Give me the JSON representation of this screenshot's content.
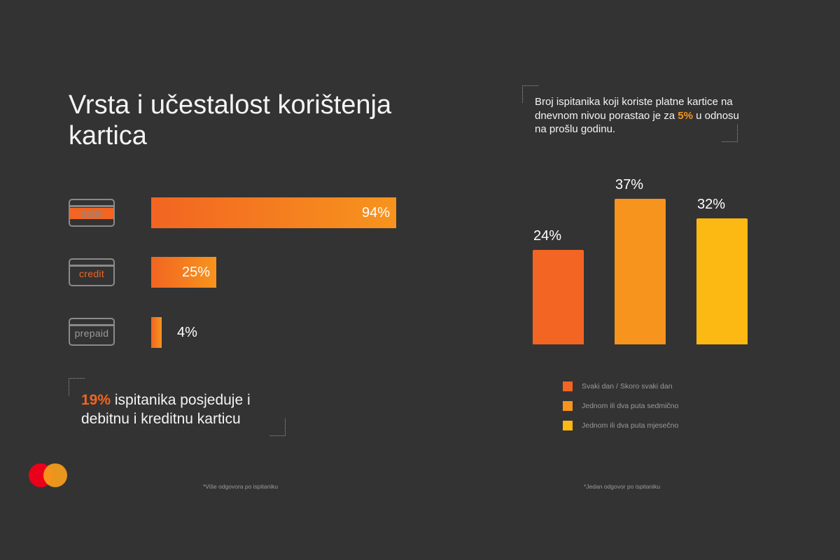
{
  "title": "Vrsta i učestalost korištenja kartica",
  "colors": {
    "background": "#333333",
    "orange": "#f26522",
    "amber": "#f7941d",
    "yellow": "#fdb913",
    "gray": "#8a8a8a",
    "logo_red": "#eb001b",
    "logo_orange": "#f79e1b"
  },
  "chart_data": [
    {
      "type": "bar",
      "orientation": "horizontal",
      "categories": [
        "debit",
        "credit",
        "prepaid"
      ],
      "values": [
        94,
        25,
        4
      ],
      "value_labels": [
        "94%",
        "25%",
        "4%"
      ],
      "xlim": [
        0,
        100
      ],
      "footnote": "*Više odgovora po ispitaniku"
    },
    {
      "type": "bar",
      "orientation": "vertical",
      "categories": [
        "Svaki dan / Skoro svaki dan",
        "Jednom ili dva puta sedmično",
        "Jednom ili dva puta mjesečno"
      ],
      "values": [
        24,
        37,
        32
      ],
      "value_labels": [
        "24%",
        "37%",
        "32%"
      ],
      "ylim": [
        0,
        40
      ],
      "legend": [
        "Svaki dan / Skoro svaki dan",
        "Jednom ili dva puta sedmično",
        "Jednom ili dva puta mjesečno"
      ],
      "footnote": "*Jedan odgovor po ispitaniku"
    }
  ],
  "left_stat": {
    "highlight": "19%",
    "text": " ispitanika posjeduje i debitnu i kreditnu karticu"
  },
  "right_stat": {
    "text_before": "Broj ispitanika koji koriste platne kartice na dnevnom nivou porastao je za ",
    "highlight": "5%",
    "text_after": " u odnosu na prošlu godinu."
  },
  "logo": {
    "icon": "mastercard-logo-icon"
  }
}
